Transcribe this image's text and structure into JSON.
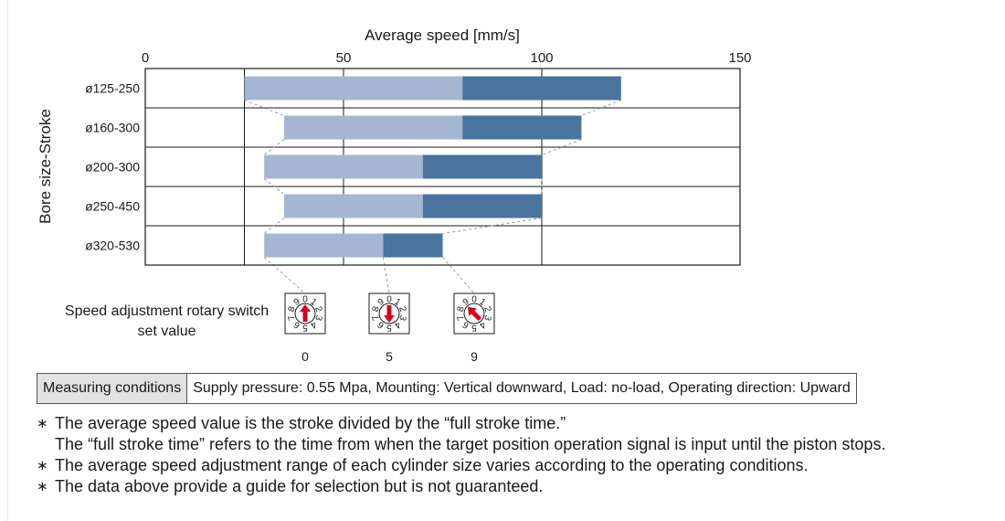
{
  "chart_data": {
    "type": "bar",
    "orientation": "horizontal",
    "xlabel": "Average speed [mm/s]",
    "ylabel": "Bore size-Stroke",
    "xlim": [
      0,
      150
    ],
    "x_ticks": [
      "0",
      "50",
      "100",
      "150"
    ],
    "grid": true,
    "categories": [
      "ø125-250",
      "ø160-300",
      "ø200-300",
      "ø250-450",
      "ø320-530"
    ],
    "series": [
      {
        "name": "",
        "color": "#a5b6d3",
        "ranges": [
          [
            25,
            80
          ],
          [
            35,
            80
          ],
          [
            30,
            70
          ],
          [
            35,
            70
          ],
          [
            30,
            60
          ]
        ]
      },
      {
        "name": "",
        "color": "#4a739e",
        "ranges": [
          [
            80,
            120
          ],
          [
            80,
            110
          ],
          [
            70,
            100
          ],
          [
            70,
            100
          ],
          [
            60,
            75
          ]
        ]
      }
    ],
    "switch_markers": [
      {
        "label": "0",
        "connects_to_speed": 30,
        "pointer": "up"
      },
      {
        "label": "5",
        "connects_to_speed": 60,
        "pointer": "down"
      },
      {
        "label": "9",
        "connects_to_speed": 75,
        "pointer": "up-left"
      }
    ],
    "dial_digits": [
      "0",
      "1",
      "2",
      "3",
      "4",
      "5",
      "6",
      "7",
      "8",
      "9"
    ],
    "pointer_color": "#d0021b"
  },
  "switch_label_line1": "Speed adjustment rotary switch",
  "switch_label_line2": "set value",
  "conditions": {
    "header": "Measuring conditions",
    "text": "Supply pressure: 0.55 Mpa, Mounting: Vertical downward,  Load: no-load, Operating direction: Upward"
  },
  "notes": {
    "mark": "∗",
    "line1": "The average speed value is the stroke divided by the “full stroke time.”",
    "line1b": "The “full stroke time” refers to the time from when the target position operation signal is input until the piston stops.",
    "line2": "The average speed adjustment range of each cylinder size varies according to the operating conditions.",
    "line3": "The data above provide a guide for selection but is not guaranteed."
  }
}
